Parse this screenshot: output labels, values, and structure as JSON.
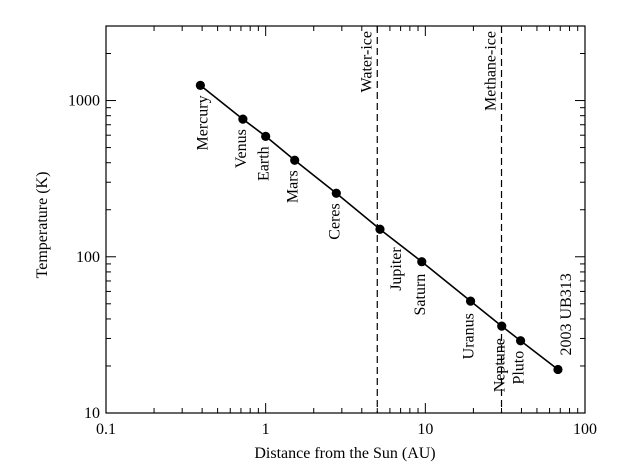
{
  "chart_data": {
    "type": "scatter",
    "title": "",
    "xlabel": "Distance from the Sun (AU)",
    "ylabel": "Temperature (K)",
    "x_scale": "log",
    "y_scale": "log",
    "xlim": [
      0.1,
      100
    ],
    "ylim": [
      10,
      3000
    ],
    "grid": false,
    "legend": "none",
    "x_major_ticks": [
      {
        "value": 0.1,
        "label": "0.1"
      },
      {
        "value": 1,
        "label": "1"
      },
      {
        "value": 10,
        "label": "10"
      },
      {
        "value": 100,
        "label": "100"
      }
    ],
    "y_major_ticks": [
      {
        "value": 10,
        "label": "10"
      },
      {
        "value": 100,
        "label": "100"
      },
      {
        "value": 1000,
        "label": "1000"
      }
    ],
    "series": [
      {
        "points": [
          {
            "label": "Mercury",
            "x": 0.39,
            "y": 1250
          },
          {
            "label": "Venus",
            "x": 0.72,
            "y": 760
          },
          {
            "label": "Earth",
            "x": 1.0,
            "y": 590
          },
          {
            "label": "Mars",
            "x": 1.52,
            "y": 415
          },
          {
            "label": "Ceres",
            "x": 2.77,
            "y": 255
          },
          {
            "label": "Jupiter",
            "x": 5.2,
            "y": 150
          },
          {
            "label": "Saturn",
            "x": 9.5,
            "y": 93
          },
          {
            "label": "Uranus",
            "x": 19.2,
            "y": 52
          },
          {
            "label": "Neptune",
            "x": 30.1,
            "y": 36
          },
          {
            "label": "Pluto",
            "x": 39.5,
            "y": 29
          },
          {
            "label": "2003 UB313",
            "x": 67.7,
            "y": 19
          }
        ]
      }
    ],
    "reference_lines": [
      {
        "label": "Water-ice",
        "x": 5.0
      },
      {
        "label": "Methane-ice",
        "x": 30.0
      }
    ]
  }
}
